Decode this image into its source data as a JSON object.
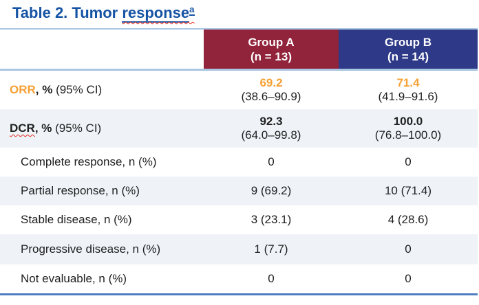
{
  "title": {
    "prefix": "Table 2. Tumor ",
    "underlined": "response",
    "superscript": "a"
  },
  "colors": {
    "title_blue": "#1553A4",
    "group_a_red": "#91233A",
    "group_b_blue": "#2E3A88",
    "row_shade": "#EFF3F8",
    "light_line": "#A9C6E3",
    "bottom_line": "#4E7DC1",
    "orange": "#F5A033",
    "squiggle_red": "#E02A1E"
  },
  "columns": [
    {
      "label": "Group A",
      "sub": "(n = 13)"
    },
    {
      "label": "Group B",
      "sub": "(n = 14)"
    }
  ],
  "rows": [
    {
      "keyword": "ORR",
      "suffix_bold": ", %",
      "suffix": " (95% CI)",
      "cells": [
        {
          "value": "69.2",
          "ci": "(38.6–90.9)"
        },
        {
          "value": "71.4",
          "ci": "(41.9–91.6)"
        }
      ]
    },
    {
      "keyword": "DCR",
      "suffix_bold": ", %",
      "suffix": " (95% CI)",
      "cells": [
        {
          "value": "92.3",
          "ci": "(64.0–99.8)"
        },
        {
          "value": "100.0",
          "ci": "(76.8–100.0)"
        }
      ]
    },
    {
      "label": "Complete response, n (%)",
      "cells": [
        {
          "value": "0"
        },
        {
          "value": "0"
        }
      ]
    },
    {
      "label": "Partial response, n (%)",
      "cells": [
        {
          "value": "9 (69.2)"
        },
        {
          "value": "10 (71.4)"
        }
      ]
    },
    {
      "label": "Stable disease, n (%)",
      "cells": [
        {
          "value": "3 (23.1)"
        },
        {
          "value": "4 (28.6)"
        }
      ]
    },
    {
      "label": "Progressive disease, n (%)",
      "cells": [
        {
          "value": "1 (7.7)"
        },
        {
          "value": "0"
        }
      ]
    },
    {
      "label": "Not evaluable, n (%)",
      "cells": [
        {
          "value": "0"
        },
        {
          "value": "0"
        }
      ]
    }
  ]
}
